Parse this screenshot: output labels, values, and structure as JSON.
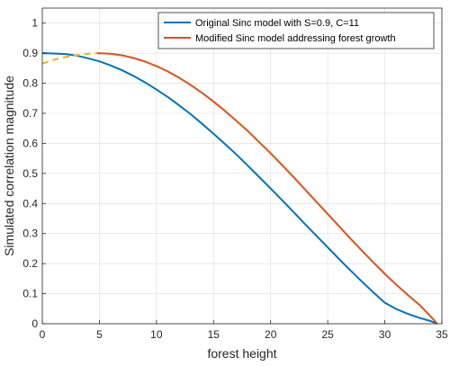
{
  "chart_data": {
    "type": "line",
    "xlabel": "forest height",
    "ylabel": "Simulated correlation magnitude",
    "xlim": [
      0,
      35
    ],
    "ylim": [
      0,
      1.05
    ],
    "grid": true,
    "legend_position": "top-right",
    "xticks": [
      {
        "value": 0,
        "label": "0"
      },
      {
        "value": 5,
        "label": "5"
      },
      {
        "value": 10,
        "label": "10"
      },
      {
        "value": 15,
        "label": "15"
      },
      {
        "value": 20,
        "label": "20"
      },
      {
        "value": 25,
        "label": "25"
      },
      {
        "value": 30,
        "label": "30"
      },
      {
        "value": 35,
        "label": "35"
      }
    ],
    "yticks": [
      {
        "value": 0,
        "label": "0"
      },
      {
        "value": 0.1,
        "label": "0.1"
      },
      {
        "value": 0.2,
        "label": "0.2"
      },
      {
        "value": 0.3,
        "label": "0.3"
      },
      {
        "value": 0.4,
        "label": "0.4"
      },
      {
        "value": 0.5,
        "label": "0.5"
      },
      {
        "value": 0.6,
        "label": "0.6"
      },
      {
        "value": 0.7,
        "label": "0.7"
      },
      {
        "value": 0.8,
        "label": "0.8"
      },
      {
        "value": 0.9,
        "label": "0.9"
      },
      {
        "value": 1,
        "label": "1"
      }
    ],
    "series": [
      {
        "name": "Original Sinc model with S=0.9, C=11",
        "color": "#0072bd",
        "style": "solid",
        "x": [
          0,
          1,
          2,
          3,
          4,
          5,
          6,
          7,
          8,
          9,
          10,
          11,
          12,
          13,
          14,
          15,
          16,
          17,
          18,
          19,
          20,
          21,
          22,
          23,
          24,
          25,
          26,
          27,
          28,
          29,
          30,
          31,
          32,
          33,
          34,
          34.6
        ],
        "y": [
          0.9,
          0.899,
          0.897,
          0.892,
          0.883,
          0.873,
          0.859,
          0.843,
          0.824,
          0.803,
          0.779,
          0.754,
          0.726,
          0.697,
          0.665,
          0.632,
          0.598,
          0.563,
          0.526,
          0.488,
          0.45,
          0.411,
          0.372,
          0.332,
          0.293,
          0.254,
          0.215,
          0.177,
          0.14,
          0.104,
          0.07,
          0.049,
          0.033,
          0.02,
          0.009,
          0.0
        ]
      },
      {
        "name": "Modified Sinc model addressing forest growth",
        "color": "#d95319",
        "style": "solid",
        "x": [
          4.8,
          6,
          7,
          8,
          9,
          10,
          11,
          12,
          13,
          14,
          15,
          16,
          17,
          18,
          19,
          20,
          21,
          22,
          23,
          24,
          25,
          26,
          27,
          28,
          29,
          30,
          31,
          32,
          33,
          34,
          34.6
        ],
        "y": [
          0.9,
          0.898,
          0.893,
          0.884,
          0.872,
          0.857,
          0.839,
          0.818,
          0.794,
          0.768,
          0.739,
          0.708,
          0.675,
          0.641,
          0.604,
          0.567,
          0.528,
          0.488,
          0.447,
          0.406,
          0.365,
          0.324,
          0.283,
          0.243,
          0.204,
          0.166,
          0.13,
          0.096,
          0.064,
          0.025,
          0.0
        ]
      },
      {
        "name": "",
        "color": "#edb120",
        "style": "dashed",
        "x": [
          0,
          1,
          2,
          3,
          4,
          4.8
        ],
        "y": [
          0.865,
          0.878,
          0.887,
          0.893,
          0.898,
          0.9
        ]
      }
    ]
  }
}
